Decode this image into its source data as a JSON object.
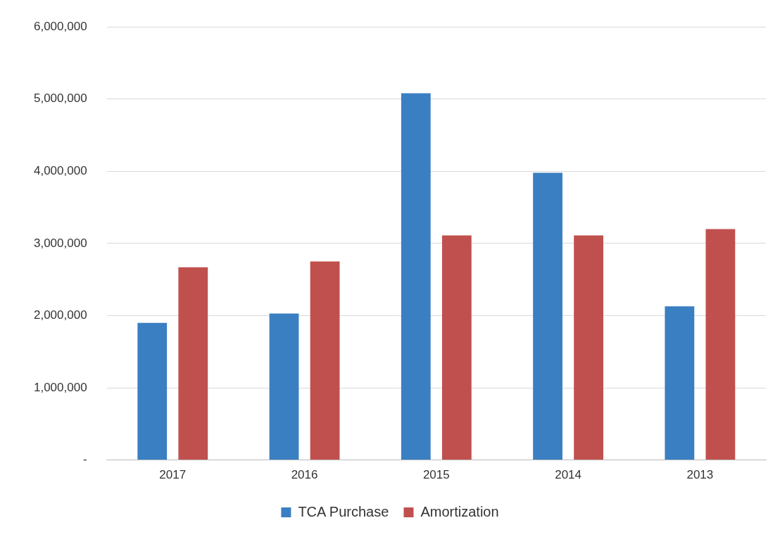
{
  "chart_data": {
    "type": "bar",
    "categories": [
      "2017",
      "2016",
      "2015",
      "2014",
      "2013"
    ],
    "series": [
      {
        "name": "TCA Purchase",
        "color": "#3a7fc1",
        "values": [
          1900000,
          2030000,
          5080000,
          3980000,
          2130000
        ]
      },
      {
        "name": "Amortization",
        "color": "#c0504d",
        "values": [
          2670000,
          2750000,
          3110000,
          3110000,
          3200000
        ]
      }
    ],
    "ylim": [
      0,
      6000000
    ],
    "yticks": [
      {
        "value": 0,
        "label": "-"
      },
      {
        "value": 1000000,
        "label": "1,000,000"
      },
      {
        "value": 2000000,
        "label": "2,000,000"
      },
      {
        "value": 3000000,
        "label": "3,000,000"
      },
      {
        "value": 4000000,
        "label": "4,000,000"
      },
      {
        "value": 5000000,
        "label": "5,000,000"
      },
      {
        "value": 6000000,
        "label": "6,000,000"
      }
    ],
    "grid": "y",
    "legend": "bottom"
  }
}
